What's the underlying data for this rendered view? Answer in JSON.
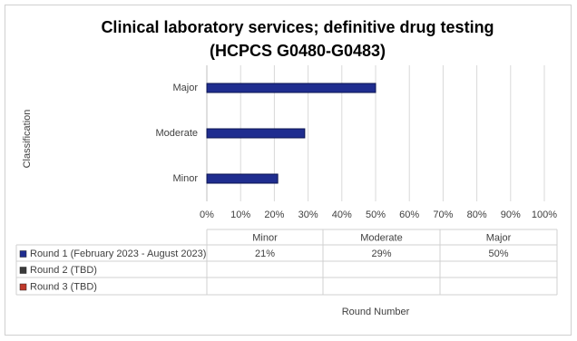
{
  "chart_data": {
    "type": "bar",
    "orientation": "horizontal",
    "title": [
      "Clinical laboratory services; definitive drug testing",
      "(HCPCS G0480-G0483)"
    ],
    "y_label": "Classification",
    "x_label": "Round Number",
    "categories": [
      "Minor",
      "Moderate",
      "Major"
    ],
    "series": [
      {
        "name": "Round 1 (February 2023 - August 2023)",
        "color": "#1f2d8f",
        "values": [
          21,
          29,
          50
        ],
        "value_labels": [
          "21%",
          "29%",
          "50%"
        ]
      },
      {
        "name": "Round 2 (TBD)",
        "color": "#3a3a3a",
        "values": [
          null,
          null,
          null
        ]
      },
      {
        "name": "Round 3 (TBD)",
        "color": "#c0392b",
        "values": [
          null,
          null,
          null
        ]
      }
    ],
    "xlim": [
      0,
      100
    ],
    "xticks": [
      {
        "value": 0,
        "label": "0%"
      },
      {
        "value": 10,
        "label": "10%"
      },
      {
        "value": 20,
        "label": "20%"
      },
      {
        "value": 30,
        "label": "30%"
      },
      {
        "value": 40,
        "label": "40%"
      },
      {
        "value": 50,
        "label": "50%"
      },
      {
        "value": 60,
        "label": "60%"
      },
      {
        "value": 70,
        "label": "70%"
      },
      {
        "value": 80,
        "label": "80%"
      },
      {
        "value": 90,
        "label": "90%"
      },
      {
        "value": 100,
        "label": "100%"
      }
    ],
    "grid": true,
    "data_table": true
  }
}
